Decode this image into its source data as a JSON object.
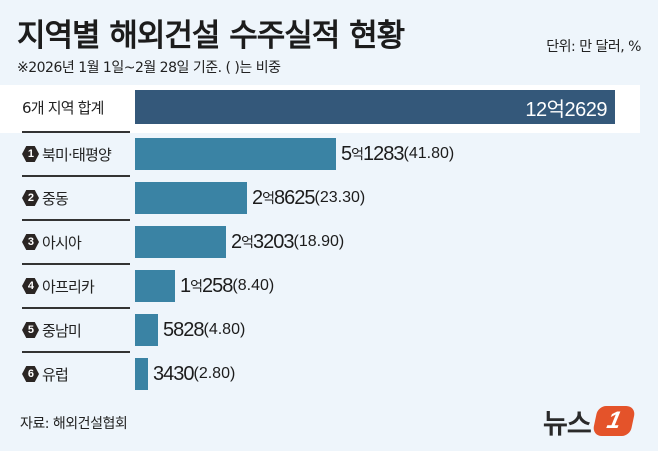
{
  "header": {
    "title": "지역별 해외건설 수주실적 현황",
    "subtitle": "※2026년 1월 1일~2월 28일 기준. ( )는 비중",
    "unit": "단위: 만 달러, %"
  },
  "total": {
    "label": "6개 지역 합계",
    "value_text": "12억2629",
    "value": 122629
  },
  "rows": [
    {
      "rank": "1",
      "label": "북미·태평양",
      "eok": "5",
      "rest": "1283",
      "share": "(41.80)",
      "value": 51283
    },
    {
      "rank": "2",
      "label": "중동",
      "eok": "2",
      "rest": "8625",
      "share": "(23.30)",
      "value": 28625
    },
    {
      "rank": "3",
      "label": "아시아",
      "eok": "2",
      "rest": "3203",
      "share": "(18.90)",
      "value": 23203
    },
    {
      "rank": "4",
      "label": "아프리카",
      "eok": "1",
      "rest": "258",
      "share": "(8.40)",
      "value": 10258
    },
    {
      "rank": "5",
      "label": "중남미",
      "eok": "",
      "rest": "5828",
      "share": "(4.80)",
      "value": 5828
    },
    {
      "rank": "6",
      "label": "유럽",
      "eok": "",
      "rest": "3430",
      "share": "(2.80)",
      "value": 3430
    }
  ],
  "eok_unit": "억",
  "footer": {
    "source": "자료: 해외건설협회",
    "logo_text": "뉴스",
    "logo_mark": "1"
  },
  "colors": {
    "total_bar": "#34587a",
    "region_bar": "#3a83a4",
    "background": "#eef5fb",
    "logo_accent": "#e4532a"
  },
  "chart_data": {
    "type": "bar",
    "orientation": "horizontal",
    "title": "지역별 해외건설 수주실적 현황",
    "subtitle": "※2026년 1월 1일~2월 28일 기준. ( )는 비중",
    "unit": "만 달러, %",
    "categories": [
      "6개 지역 합계",
      "북미·태평양",
      "중동",
      "아시아",
      "아프리카",
      "중남미",
      "유럽"
    ],
    "values": [
      122629,
      51283,
      28625,
      23203,
      10258,
      5828,
      3430
    ],
    "value_labels": [
      "12억2629",
      "5억1283",
      "2억8625",
      "2억3203",
      "1억258",
      "5828",
      "3430"
    ],
    "share_percent": [
      null,
      41.8,
      23.3,
      18.9,
      8.4,
      4.8,
      2.8
    ],
    "xlabel": "",
    "ylabel": "",
    "grid": false,
    "legend": null,
    "source": "자료: 해외건설협회"
  }
}
